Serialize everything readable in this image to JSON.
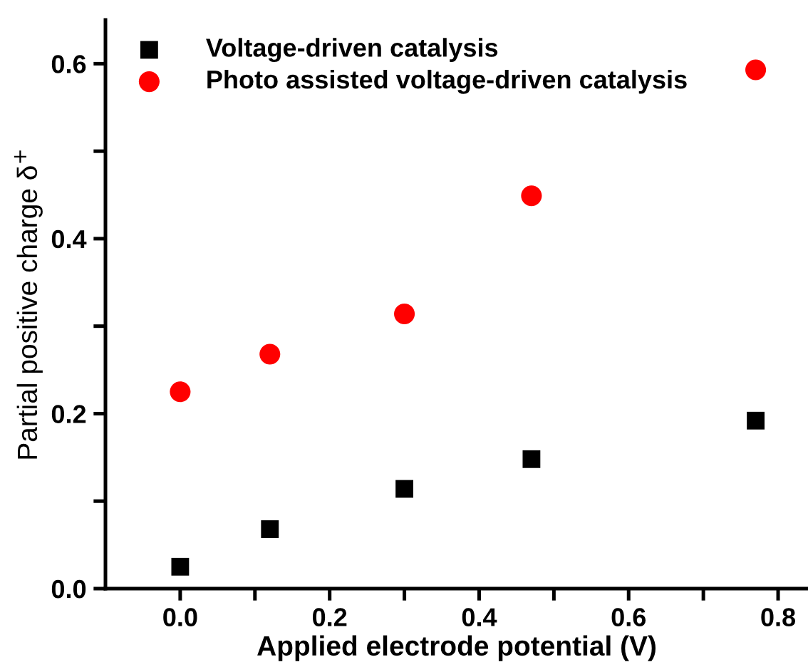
{
  "chart_data": {
    "type": "scatter",
    "xlabel": "Applied electrode potential (V)",
    "ylabel": "Partial positive charge δ$^{+}$",
    "x": [
      0,
      0.12,
      0.3,
      0.47,
      0.77
    ],
    "series": [
      {
        "name": "Voltage-driven catalysis",
        "color": "#000000",
        "marker": "square",
        "values": [
          0.025,
          0.068,
          0.114,
          0.148,
          0.192
        ]
      },
      {
        "name": "Photo assisted voltage-driven catalysis",
        "color": "#ff0000",
        "marker": "circle",
        "values": [
          0.225,
          0.268,
          0.314,
          0.449,
          0.593
        ]
      }
    ],
    "xlim": [
      -0.1,
      0.84
    ],
    "ylim": [
      0,
      0.65
    ],
    "xticks": [
      {
        "value": 0.0,
        "label": "0.0"
      },
      {
        "value": 0.1,
        "label": null
      },
      0.2,
      {
        "value": 0.3,
        "label": null
      },
      0.4,
      {
        "value": 0.5,
        "label": null
      },
      0.6,
      {
        "value": 0.7,
        "label": null
      },
      0.8
    ],
    "yticks": [
      {
        "value": 0.0,
        "label": "0.0"
      },
      {
        "value": 0.1,
        "label": null
      },
      0.2,
      {
        "value": 0.3,
        "label": null
      },
      0.4,
      {
        "value": 0.5,
        "label": null
      },
      0.6
    ],
    "grid": false,
    "legend": "top left"
  }
}
